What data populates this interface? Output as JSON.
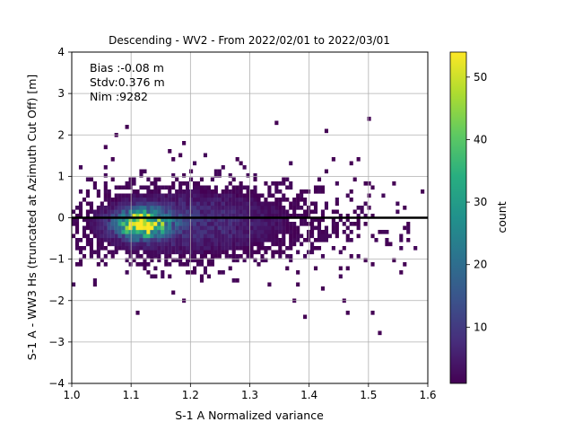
{
  "chart_data": {
    "type": "heatmap",
    "title": "Descending - WV2 - From 2022/02/01 to 2022/03/01",
    "xlabel": "S-1 A Normalized variance",
    "ylabel": "S-1 A - WW3 Hs (truncated at Azimuth Cut Off) [m]",
    "xlim": [
      1.0,
      1.6
    ],
    "ylim": [
      -4,
      4
    ],
    "xticks": [
      "1.0",
      "1.1",
      "1.2",
      "1.3",
      "1.4",
      "1.5",
      "1.6"
    ],
    "yticks": [
      "−4",
      "−3",
      "−2",
      "−1",
      "0",
      "1",
      "2",
      "3",
      "4"
    ],
    "grid": true,
    "stats": {
      "bias": "Bias :-0.08 m",
      "stdv": "Stdv:0.376 m",
      "nim": "Nim :9282"
    },
    "mean_line_y": 0,
    "colorbar": {
      "label": "count",
      "min": 1,
      "max": 54,
      "ticks": [
        "10",
        "20",
        "30",
        "40",
        "50"
      ],
      "colormap": "viridis"
    },
    "density_peak": {
      "x": 1.12,
      "y": -0.15,
      "count": 54
    }
  }
}
